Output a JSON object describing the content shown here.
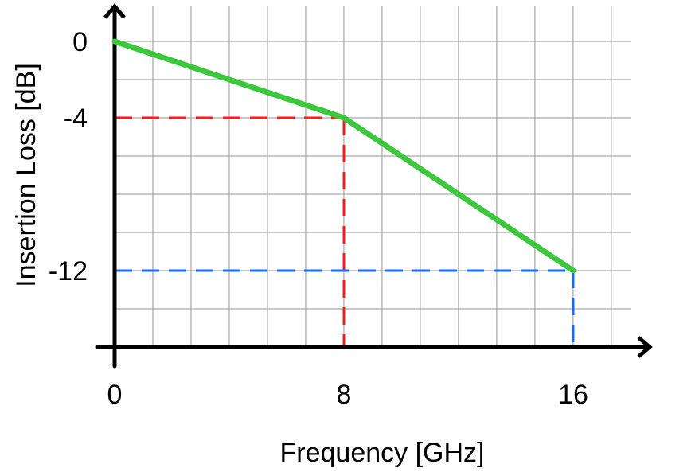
{
  "chart_data": {
    "type": "line",
    "title": "",
    "xlabel": "Frequency [GHz]",
    "ylabel": "Insertion Loss [dB]",
    "xlim": [
      0,
      18
    ],
    "ylim": [
      -16,
      0
    ],
    "x_ticks": [
      {
        "value": 0,
        "label": "0"
      },
      {
        "value": 8,
        "label": "8"
      },
      {
        "value": 16,
        "label": "16"
      }
    ],
    "y_ticks": [
      {
        "value": 0,
        "label": "0"
      },
      {
        "value": -4,
        "label": "-4"
      },
      {
        "value": -12,
        "label": "-12"
      }
    ],
    "grid": true,
    "grid_x_step": 1.333,
    "grid_y_step": 2,
    "series": [
      {
        "x": [
          0,
          8,
          16
        ],
        "y": [
          0,
          -4,
          -12
        ],
        "color": "#3cc83c"
      }
    ],
    "guides": [
      {
        "x": 8,
        "y": -4,
        "color": "#ff1a1a"
      },
      {
        "x": 16,
        "y": -12,
        "color": "#1a6cff"
      }
    ]
  }
}
